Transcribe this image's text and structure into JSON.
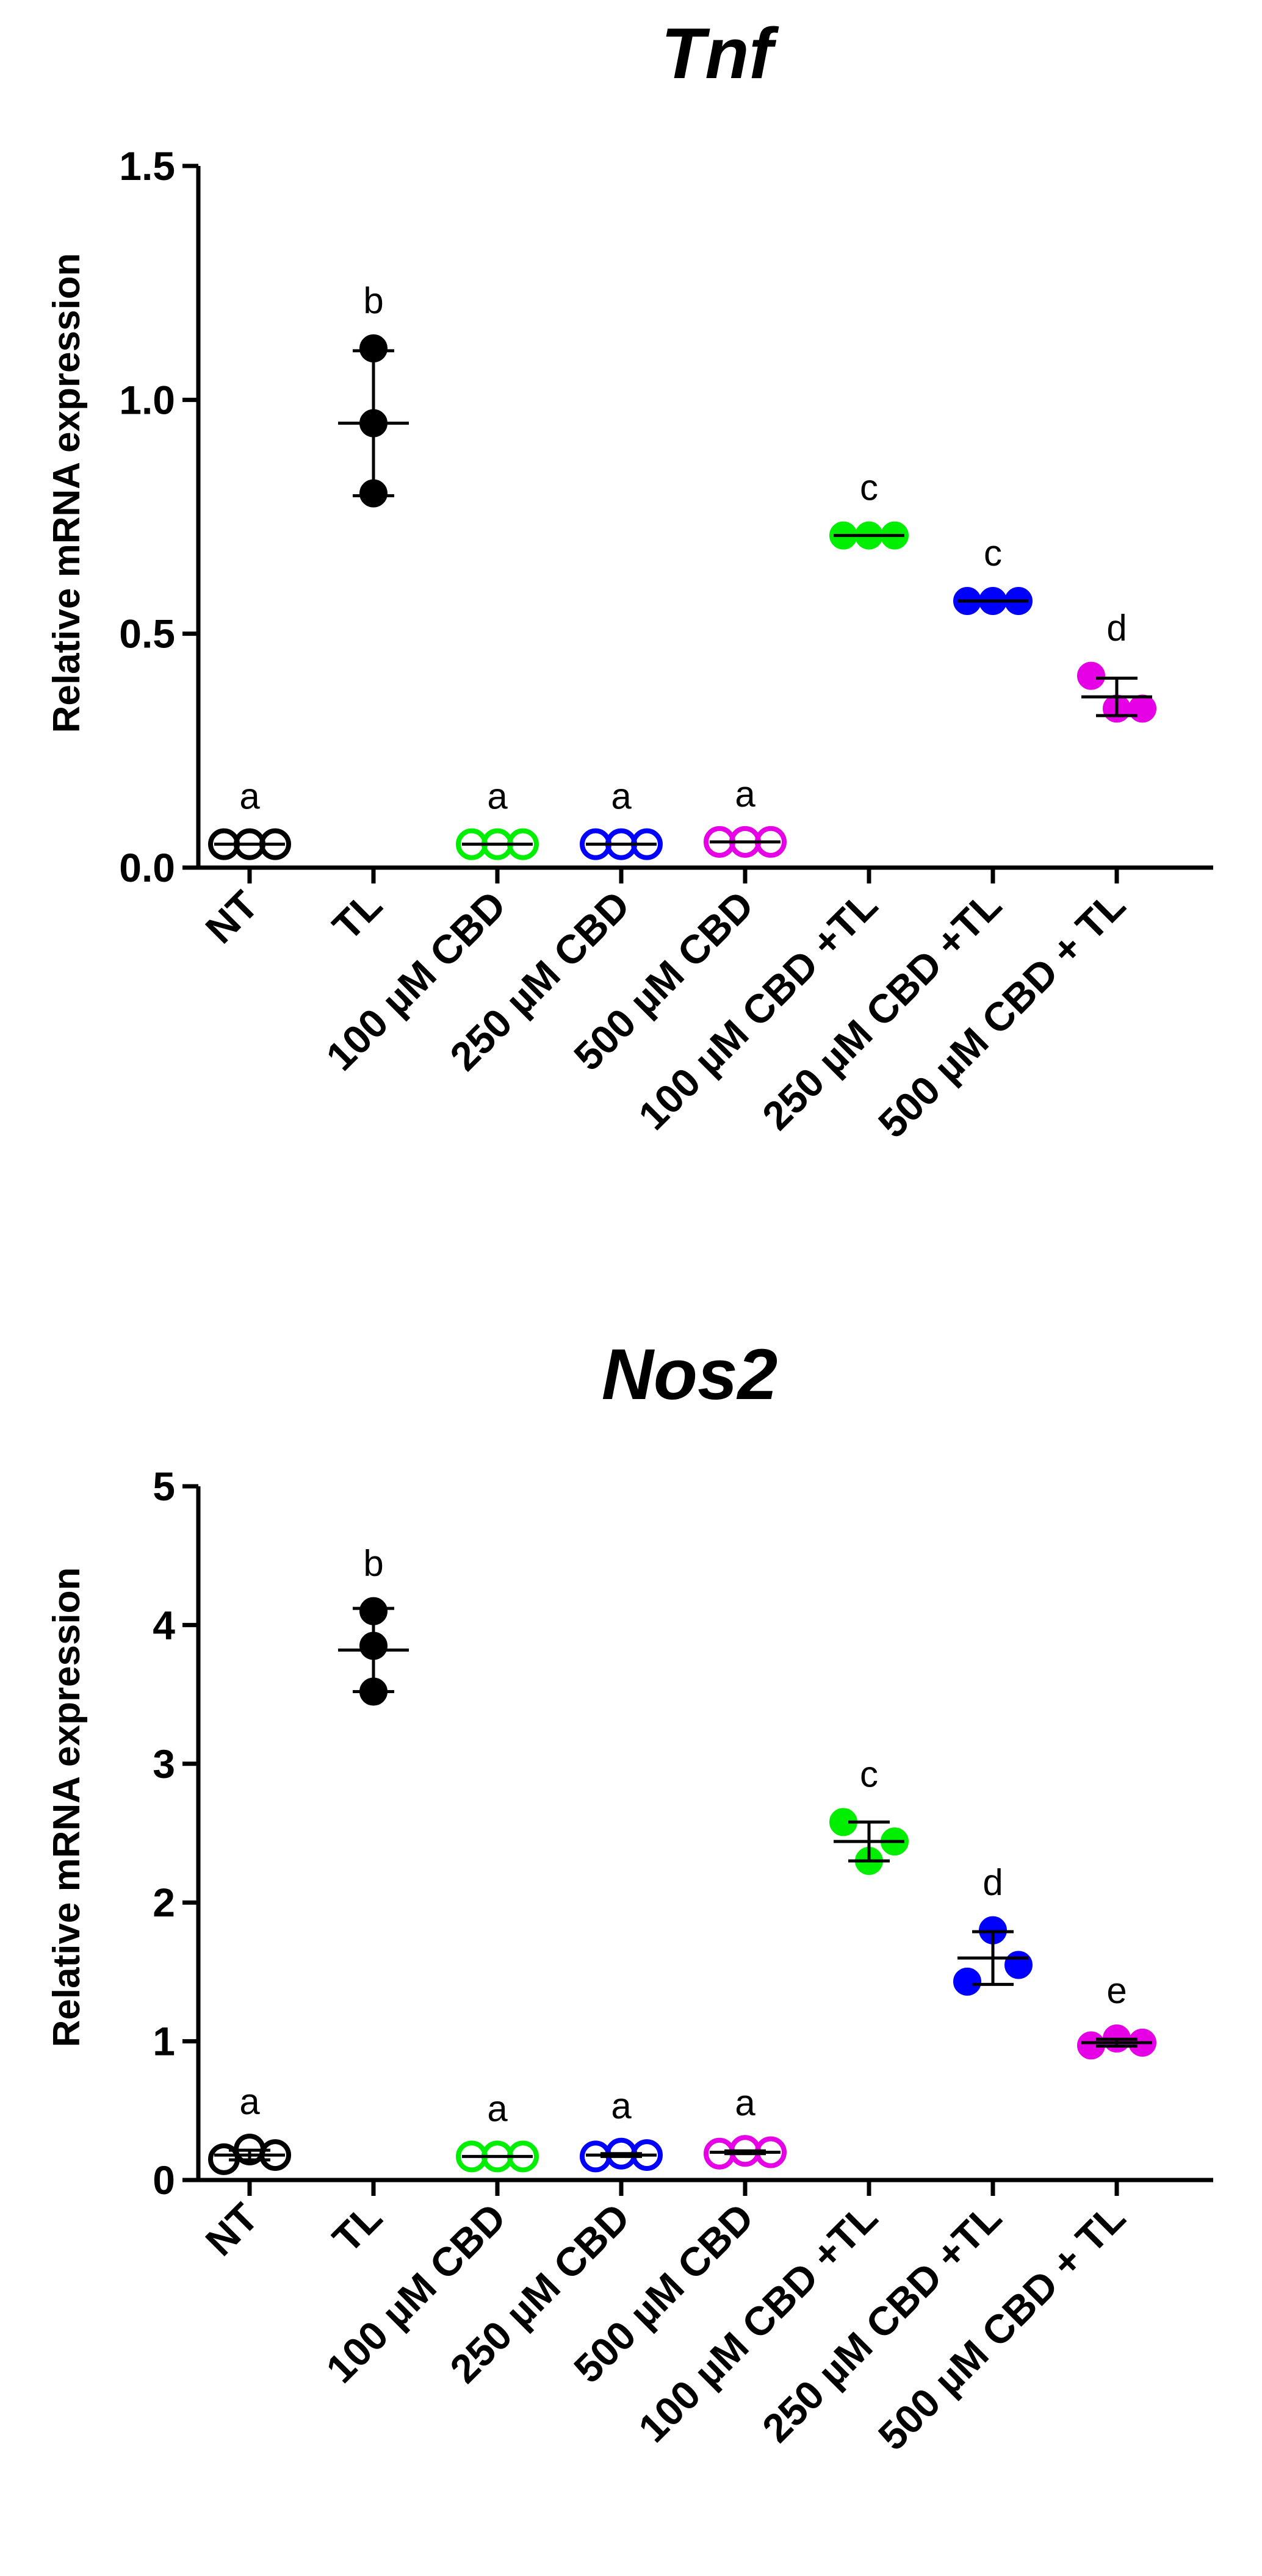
{
  "chart_data": [
    {
      "type": "scatter",
      "title": "Tnf",
      "ylabel": "Relative mRNA expression",
      "xlabel": "",
      "ylim": [
        0,
        1.5
      ],
      "yticks": [
        0.0,
        0.5,
        1.0,
        1.5
      ],
      "ytick_labels": [
        "0.0",
        "0.5",
        "1.0",
        "1.5"
      ],
      "grid": false,
      "categories": [
        "NT",
        "TL",
        "100 µM CBD",
        "250 µM CBD",
        "500 µM CBD",
        "100 µM CBD +TL",
        "250 µM CBD +TL",
        "500 µM CBD + TL"
      ],
      "groups": [
        {
          "name": "NT",
          "color": "#000000",
          "filled": false,
          "values": [
            0.05,
            0.05,
            0.05
          ],
          "mean": 0.05,
          "sd": 0.0,
          "letter": "a"
        },
        {
          "name": "TL",
          "color": "#000000",
          "filled": true,
          "values": [
            1.11,
            0.95,
            0.8
          ],
          "mean": 0.95,
          "sd": 0.155,
          "letter": "b"
        },
        {
          "name": "100 µM CBD",
          "color": "#00ee00",
          "filled": false,
          "values": [
            0.05,
            0.05,
            0.05
          ],
          "mean": 0.05,
          "sd": 0.0,
          "letter": "a"
        },
        {
          "name": "250 µM CBD",
          "color": "#0000ff",
          "filled": false,
          "values": [
            0.05,
            0.05,
            0.05
          ],
          "mean": 0.05,
          "sd": 0.0,
          "letter": "a"
        },
        {
          "name": "500 µM CBD",
          "color": "#e600e6",
          "filled": false,
          "values": [
            0.055,
            0.055,
            0.055
          ],
          "mean": 0.055,
          "sd": 0.0,
          "letter": "a"
        },
        {
          "name": "100 µM CBD +TL",
          "color": "#00ee00",
          "filled": true,
          "values": [
            0.71,
            0.71,
            0.71
          ],
          "mean": 0.71,
          "sd": 0.0,
          "letter": "c"
        },
        {
          "name": "250 µM CBD +TL",
          "color": "#0000ff",
          "filled": true,
          "values": [
            0.57,
            0.57,
            0.57
          ],
          "mean": 0.57,
          "sd": 0.0,
          "letter": "c"
        },
        {
          "name": "500 µM CBD + TL",
          "color": "#e600e6",
          "filled": true,
          "values": [
            0.41,
            0.34,
            0.34
          ],
          "mean": 0.365,
          "sd": 0.04,
          "letter": "d"
        }
      ]
    },
    {
      "type": "scatter",
      "title": "Nos2",
      "ylabel": "Relative mRNA expression",
      "xlabel": "",
      "ylim": [
        0,
        5
      ],
      "yticks": [
        0,
        1,
        2,
        3,
        4,
        5
      ],
      "ytick_labels": [
        "0",
        "1",
        "2",
        "3",
        "4",
        "5"
      ],
      "grid": false,
      "categories": [
        "NT",
        "TL",
        "100 µM CBD",
        "250 µM CBD",
        "500 µM CBD",
        "100 µM CBD +TL",
        "250 µM CBD +TL",
        "500 µM CBD + TL"
      ],
      "groups": [
        {
          "name": "NT",
          "color": "#000000",
          "filled": false,
          "values": [
            0.15,
            0.22,
            0.18
          ],
          "mean": 0.18,
          "sd": 0.035,
          "letter": "a"
        },
        {
          "name": "TL",
          "color": "#000000",
          "filled": true,
          "values": [
            4.1,
            3.85,
            3.52
          ],
          "mean": 3.82,
          "sd": 0.3,
          "letter": "b"
        },
        {
          "name": "100 µM CBD",
          "color": "#00ee00",
          "filled": false,
          "values": [
            0.17,
            0.17,
            0.17
          ],
          "mean": 0.17,
          "sd": 0.0,
          "letter": "a"
        },
        {
          "name": "250 µM CBD",
          "color": "#0000ff",
          "filled": false,
          "values": [
            0.17,
            0.19,
            0.18
          ],
          "mean": 0.18,
          "sd": 0.01,
          "letter": "a"
        },
        {
          "name": "500 µM CBD",
          "color": "#e600e6",
          "filled": false,
          "values": [
            0.19,
            0.21,
            0.2
          ],
          "mean": 0.2,
          "sd": 0.01,
          "letter": "a"
        },
        {
          "name": "100 µM CBD +TL",
          "color": "#00ee00",
          "filled": true,
          "values": [
            2.58,
            2.3,
            2.44
          ],
          "mean": 2.44,
          "sd": 0.14,
          "letter": "c"
        },
        {
          "name": "250 µM CBD +TL",
          "color": "#0000ff",
          "filled": true,
          "values": [
            1.8,
            1.43,
            1.55
          ],
          "mean": 1.6,
          "sd": 0.19,
          "letter": "d"
        },
        {
          "name": "500 µM CBD + TL",
          "color": "#e600e6",
          "filled": true,
          "values": [
            0.97,
            1.02,
            0.99
          ],
          "mean": 0.99,
          "sd": 0.025,
          "letter": "e"
        }
      ]
    }
  ]
}
